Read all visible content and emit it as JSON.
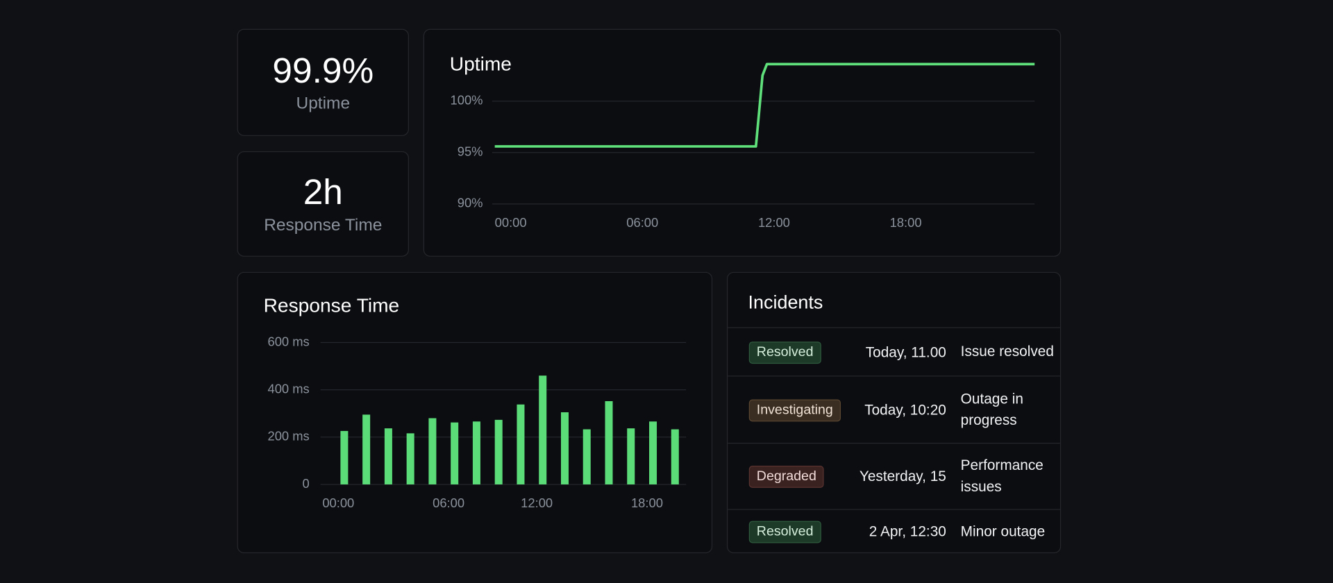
{
  "stats": [
    {
      "value": "99.9%",
      "label": "Uptime"
    },
    {
      "value": "2h",
      "label": "Response Time"
    }
  ],
  "chart_data": [
    {
      "type": "line",
      "title": "Uptime",
      "x": [
        0,
        11.9,
        12.2,
        12.4,
        24.6
      ],
      "values": [
        95.6,
        95.6,
        102.5,
        103.6,
        103.6
      ],
      "color": "#5fe07a",
      "xlim": [
        0,
        24.6
      ],
      "xticks": [
        {
          "value": 0,
          "label": "00:00"
        },
        {
          "value": 6,
          "label": "06:00"
        },
        {
          "value": 12,
          "label": "12:00"
        },
        {
          "value": 18,
          "label": "18:00"
        }
      ],
      "ylim": [
        90,
        104
      ],
      "yticks": [
        {
          "value": 90,
          "label": "90%"
        },
        {
          "value": 95,
          "label": "95%"
        },
        {
          "value": 100,
          "label": "100%"
        }
      ],
      "grid": true
    },
    {
      "type": "bar",
      "title": "Response Time",
      "categories": [
        "00:00",
        null,
        null,
        null,
        null,
        "06:00",
        null,
        null,
        null,
        "12:00",
        null,
        null,
        null,
        null,
        "18:00",
        null
      ],
      "values": [
        226,
        295,
        237,
        216,
        280,
        262,
        266,
        273,
        338,
        460,
        305,
        233,
        352,
        237,
        266,
        233
      ],
      "color": "#5bdc78",
      "ylim": [
        0,
        600
      ],
      "yticks": [
        0,
        {
          "value": 200,
          "label": "200 ms"
        },
        {
          "value": 400,
          "label": "400 ms"
        },
        {
          "value": 600,
          "label": "600 ms"
        }
      ],
      "grid": true
    }
  ],
  "incidents": {
    "title": "Incidents",
    "rows": [
      {
        "status": "Resolved",
        "time": "Today, 11.00",
        "description": "Issue resolved"
      },
      {
        "status": "Investigating",
        "time": "Today, 10:20",
        "description": "Outage in progress"
      },
      {
        "status": "Degraded",
        "time": "Yesterday, 15",
        "description": "Performance issues"
      },
      {
        "status": "Resolved",
        "time": "2 Apr, 12:30",
        "description": "Minor outage"
      }
    ]
  }
}
